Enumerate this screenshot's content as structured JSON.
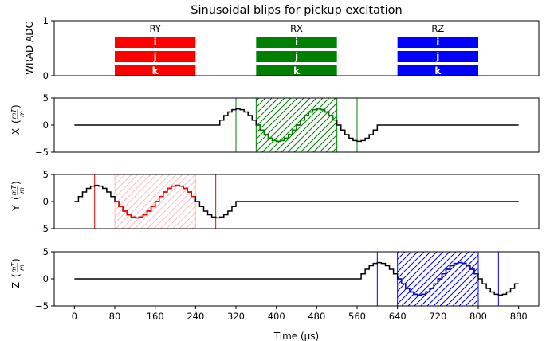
{
  "chart_data": {
    "type": "line",
    "title": "Sinusoidal blips for pickup excitation",
    "xlabel": "Time (μs)",
    "x_ticks": [
      0,
      80,
      160,
      240,
      320,
      400,
      480,
      560,
      640,
      720,
      800,
      880
    ],
    "xlim": [
      -40,
      920
    ],
    "panels": [
      {
        "id": "adc",
        "ylabel": "WRAD ADC",
        "ylim": [
          0,
          1
        ],
        "y_ticks": [
          0,
          1
        ],
        "blocks": [
          {
            "title": "RY",
            "t_start": 80,
            "t_end": 240,
            "color": "#ff0000",
            "rows": [
              "i",
              "j",
              "k"
            ]
          },
          {
            "title": "RX",
            "t_start": 360,
            "t_end": 520,
            "color": "#008000",
            "rows": [
              "i",
              "j",
              "k"
            ]
          },
          {
            "title": "RZ",
            "t_start": 640,
            "t_end": 800,
            "color": "#0000ff",
            "rows": [
              "i",
              "j",
              "k"
            ]
          }
        ]
      },
      {
        "id": "x",
        "ylabel": "X",
        "yunit_num": "mT",
        "yunit_den": "m",
        "ylim": [
          -5,
          5
        ],
        "y_ticks": [
          -5,
          0,
          5
        ],
        "color": "#008000",
        "blip_start": 280,
        "markers": [
          320,
          560
        ],
        "readout": [
          360,
          520
        ]
      },
      {
        "id": "y",
        "ylabel": "Y",
        "yunit_num": "mT",
        "yunit_den": "m",
        "ylim": [
          -5,
          5
        ],
        "y_ticks": [
          -5,
          0,
          5
        ],
        "color": "#ff0000",
        "blip_start": 0,
        "markers": [
          40,
          280
        ],
        "readout": [
          80,
          240
        ]
      },
      {
        "id": "z",
        "ylabel": "Z",
        "yunit_num": "mT",
        "yunit_den": "m",
        "ylim": [
          -5,
          5
        ],
        "y_ticks": [
          -5,
          0,
          5
        ],
        "color": "#0000ff",
        "blip_start": 560,
        "markers": [
          600,
          840
        ],
        "readout": [
          640,
          800
        ]
      }
    ],
    "waveform": {
      "amplitude": 3,
      "period_us": 160,
      "duration_us": 320,
      "step_us": 8,
      "t_end": 880
    }
  }
}
